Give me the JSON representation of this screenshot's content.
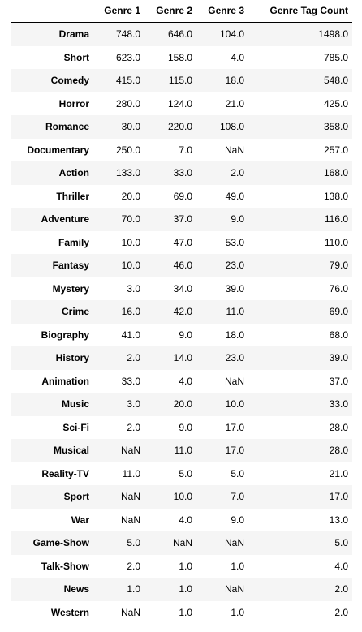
{
  "table": {
    "columns": [
      "",
      "Genre 1",
      "Genre 2",
      "Genre 3",
      "Genre Tag Count"
    ],
    "rows": [
      {
        "index": "Drama",
        "cells": [
          "748.0",
          "646.0",
          "104.0",
          "1498.0"
        ]
      },
      {
        "index": "Short",
        "cells": [
          "623.0",
          "158.0",
          "4.0",
          "785.0"
        ]
      },
      {
        "index": "Comedy",
        "cells": [
          "415.0",
          "115.0",
          "18.0",
          "548.0"
        ]
      },
      {
        "index": "Horror",
        "cells": [
          "280.0",
          "124.0",
          "21.0",
          "425.0"
        ]
      },
      {
        "index": "Romance",
        "cells": [
          "30.0",
          "220.0",
          "108.0",
          "358.0"
        ]
      },
      {
        "index": "Documentary",
        "cells": [
          "250.0",
          "7.0",
          "NaN",
          "257.0"
        ]
      },
      {
        "index": "Action",
        "cells": [
          "133.0",
          "33.0",
          "2.0",
          "168.0"
        ]
      },
      {
        "index": "Thriller",
        "cells": [
          "20.0",
          "69.0",
          "49.0",
          "138.0"
        ]
      },
      {
        "index": "Adventure",
        "cells": [
          "70.0",
          "37.0",
          "9.0",
          "116.0"
        ]
      },
      {
        "index": "Family",
        "cells": [
          "10.0",
          "47.0",
          "53.0",
          "110.0"
        ]
      },
      {
        "index": "Fantasy",
        "cells": [
          "10.0",
          "46.0",
          "23.0",
          "79.0"
        ]
      },
      {
        "index": "Mystery",
        "cells": [
          "3.0",
          "34.0",
          "39.0",
          "76.0"
        ]
      },
      {
        "index": "Crime",
        "cells": [
          "16.0",
          "42.0",
          "11.0",
          "69.0"
        ]
      },
      {
        "index": "Biography",
        "cells": [
          "41.0",
          "9.0",
          "18.0",
          "68.0"
        ]
      },
      {
        "index": "History",
        "cells": [
          "2.0",
          "14.0",
          "23.0",
          "39.0"
        ]
      },
      {
        "index": "Animation",
        "cells": [
          "33.0",
          "4.0",
          "NaN",
          "37.0"
        ]
      },
      {
        "index": "Music",
        "cells": [
          "3.0",
          "20.0",
          "10.0",
          "33.0"
        ]
      },
      {
        "index": "Sci-Fi",
        "cells": [
          "2.0",
          "9.0",
          "17.0",
          "28.0"
        ]
      },
      {
        "index": "Musical",
        "cells": [
          "NaN",
          "11.0",
          "17.0",
          "28.0"
        ]
      },
      {
        "index": "Reality-TV",
        "cells": [
          "11.0",
          "5.0",
          "5.0",
          "21.0"
        ]
      },
      {
        "index": "Sport",
        "cells": [
          "NaN",
          "10.0",
          "7.0",
          "17.0"
        ]
      },
      {
        "index": "War",
        "cells": [
          "NaN",
          "4.0",
          "9.0",
          "13.0"
        ]
      },
      {
        "index": "Game-Show",
        "cells": [
          "5.0",
          "NaN",
          "NaN",
          "5.0"
        ]
      },
      {
        "index": "Talk-Show",
        "cells": [
          "2.0",
          "1.0",
          "1.0",
          "4.0"
        ]
      },
      {
        "index": "News",
        "cells": [
          "1.0",
          "1.0",
          "NaN",
          "2.0"
        ]
      },
      {
        "index": "Western",
        "cells": [
          "NaN",
          "1.0",
          "1.0",
          "2.0"
        ]
      }
    ]
  },
  "colors": {
    "striped_row": "#f5f5f5",
    "plain_row": "#ffffff",
    "header_rule": "#000000"
  }
}
